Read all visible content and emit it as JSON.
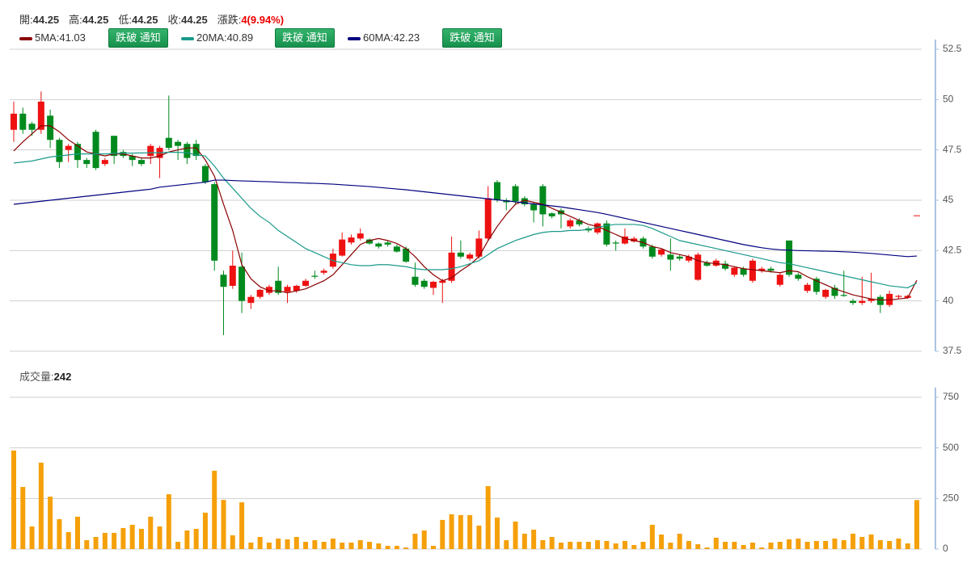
{
  "header": {
    "quote": [
      {
        "label": "開:",
        "value": 44.25
      },
      {
        "label": "高:",
        "value": 44.25
      },
      {
        "label": "低:",
        "value": 44.25
      },
      {
        "label": "收:",
        "value": 44.25
      },
      {
        "label": "漲跌:",
        "value": "4(9.94%)"
      }
    ],
    "button": "跌破 通知"
  },
  "chart_data": [
    {
      "type": "candlestick",
      "up_color": "#ee1111",
      "down_color": "#008a1e",
      "ylim": [
        37.5,
        52.5
      ],
      "yticks": [
        37.5,
        40,
        42.5,
        45,
        47.5,
        50,
        52.5
      ],
      "grid": true,
      "open": [
        48.5,
        49.3,
        48.8,
        48.5,
        49.2,
        48.0,
        47.5,
        47.8,
        47.0,
        48.4,
        46.8,
        48.2,
        47.4,
        47.2,
        47.0,
        47.2,
        47.1,
        48.1,
        47.9,
        47.8,
        47.8,
        46.7,
        45.8,
        41.3,
        40.75,
        41.7,
        39.9,
        40.2,
        40.4,
        41.0,
        40.45,
        40.5,
        40.75,
        41.25,
        41.4,
        41.7,
        42.25,
        42.9,
        43.1,
        43.05,
        42.85,
        42.9,
        42.7,
        42.6,
        41.2,
        41.0,
        40.65,
        40.9,
        41.0,
        42.4,
        42.1,
        42.2,
        43.1,
        45.9,
        45.0,
        45.7,
        45.1,
        44.8,
        45.7,
        44.35,
        44.5,
        43.7,
        44.0,
        43.6,
        43.4,
        43.85,
        42.9,
        42.85,
        42.95,
        43.1,
        42.7,
        42.3,
        42.3,
        42.2,
        42.0,
        41.05,
        41.9,
        41.75,
        41.85,
        41.3,
        41.6,
        41.0,
        41.5,
        41.6,
        40.8,
        43.0,
        41.3,
        40.5,
        41.1,
        40.2,
        40.65,
        40.3,
        40.0,
        39.9,
        40.0,
        40.2,
        39.8,
        40.2,
        40.15,
        44.25
      ],
      "high": [
        49.9,
        49.6,
        48.9,
        50.4,
        49.5,
        48.1,
        47.8,
        47.9,
        47.1,
        48.5,
        47.1,
        48.2,
        47.5,
        47.3,
        47.1,
        47.8,
        47.7,
        50.2,
        48.0,
        47.9,
        48.0,
        46.8,
        45.9,
        41.5,
        42.5,
        42.4,
        40.3,
        40.6,
        40.8,
        41.7,
        40.8,
        40.8,
        41.1,
        41.5,
        41.6,
        42.6,
        43.4,
        43.3,
        43.6,
        43.1,
        42.9,
        43.0,
        42.8,
        42.7,
        41.9,
        41.1,
        41.0,
        41.1,
        43.2,
        43.0,
        42.4,
        43.5,
        45.7,
        46.0,
        45.1,
        45.8,
        45.2,
        44.9,
        45.8,
        44.4,
        44.6,
        44.1,
        44.1,
        43.7,
        43.9,
        44.0,
        43.0,
        43.6,
        43.2,
        43.2,
        42.8,
        42.6,
        43.1,
        42.3,
        42.3,
        42.4,
        42.0,
        42.1,
        42.0,
        41.7,
        41.7,
        42.1,
        41.7,
        41.7,
        41.4,
        43.0,
        41.4,
        40.9,
        41.2,
        40.6,
        40.8,
        41.5,
        40.1,
        41.2,
        41.4,
        40.3,
        40.5,
        40.3,
        40.3,
        44.25
      ],
      "low": [
        47.9,
        48.3,
        48.2,
        48.3,
        47.6,
        46.6,
        46.9,
        46.6,
        46.6,
        46.5,
        46.7,
        46.8,
        47.1,
        46.7,
        46.7,
        46.8,
        46.1,
        47.5,
        47.0,
        46.8,
        47.0,
        45.8,
        41.5,
        38.3,
        40.6,
        39.4,
        39.6,
        40.1,
        40.3,
        40.3,
        39.9,
        40.4,
        40.7,
        41.1,
        41.3,
        41.6,
        42.2,
        42.8,
        43.0,
        42.8,
        42.6,
        42.7,
        42.4,
        41.9,
        40.7,
        40.6,
        40.3,
        39.9,
        40.9,
        42.1,
        42.0,
        42.1,
        43.0,
        44.9,
        44.5,
        44.8,
        44.7,
        43.9,
        43.7,
        44.1,
        43.6,
        43.6,
        43.7,
        43.4,
        43.3,
        42.7,
        42.5,
        42.8,
        42.9,
        42.6,
        42.1,
        42.2,
        41.5,
        42.0,
        41.9,
        41.0,
        41.7,
        41.7,
        41.5,
        41.2,
        41.2,
        40.9,
        41.4,
        41.4,
        40.7,
        41.2,
        41.0,
        40.4,
        40.3,
        40.1,
        40.1,
        40.2,
        39.8,
        39.8,
        39.9,
        39.4,
        39.7,
        40.1,
        40.1,
        44.25
      ],
      "close": [
        49.3,
        48.5,
        48.5,
        49.9,
        48.0,
        46.9,
        47.7,
        47.0,
        46.8,
        46.6,
        47.0,
        47.2,
        47.2,
        47.0,
        46.8,
        47.7,
        47.6,
        47.6,
        47.7,
        47.1,
        47.2,
        45.9,
        42.0,
        40.7,
        41.75,
        40.0,
        40.2,
        40.55,
        40.7,
        40.4,
        40.7,
        40.75,
        41.0,
        41.2,
        41.5,
        42.35,
        43.05,
        43.15,
        43.35,
        42.85,
        42.7,
        42.8,
        42.45,
        41.95,
        40.8,
        40.7,
        40.95,
        41.0,
        42.4,
        42.2,
        42.3,
        43.1,
        45.1,
        45.0,
        44.9,
        44.95,
        44.8,
        44.5,
        44.3,
        44.2,
        44.3,
        44.0,
        43.8,
        43.5,
        43.85,
        42.8,
        42.85,
        43.2,
        43.1,
        42.7,
        42.2,
        42.55,
        42.05,
        42.1,
        42.2,
        42.3,
        41.75,
        42.0,
        41.6,
        41.65,
        41.3,
        42.0,
        41.6,
        41.5,
        41.3,
        41.3,
        41.1,
        40.8,
        40.45,
        40.55,
        40.25,
        40.25,
        39.9,
        40.0,
        40.1,
        39.8,
        40.35,
        40.25,
        40.25,
        44.25
      ],
      "series": [
        {
          "legend": "5MA:41.03",
          "color": "#8b0000",
          "values": [
            47.45,
            47.9,
            48.3,
            48.7,
            48.7,
            48.4,
            48.0,
            47.7,
            47.4,
            47.3,
            47.2,
            47.3,
            47.3,
            47.2,
            47.1,
            47.1,
            47.2,
            47.4,
            47.5,
            47.6,
            47.6,
            47.0,
            46.2,
            44.8,
            43.5,
            41.8,
            41.1,
            40.7,
            40.5,
            40.5,
            40.4,
            40.5,
            40.6,
            40.8,
            41.0,
            41.3,
            41.8,
            42.3,
            42.8,
            43.0,
            43.1,
            43.0,
            42.85,
            42.6,
            42.2,
            41.7,
            41.3,
            41.0,
            41.15,
            41.5,
            41.8,
            42.2,
            43.0,
            43.7,
            44.3,
            44.8,
            45.0,
            44.9,
            44.8,
            44.6,
            44.4,
            44.2,
            44.0,
            43.8,
            43.7,
            43.5,
            43.3,
            43.1,
            43.0,
            42.9,
            42.7,
            42.6,
            42.4,
            42.3,
            42.2,
            42.0,
            41.9,
            41.85,
            41.8,
            41.7,
            41.6,
            41.55,
            41.5,
            41.45,
            41.4,
            41.5,
            41.45,
            41.2,
            41.0,
            40.8,
            40.6,
            40.45,
            40.3,
            40.2,
            40.1,
            40.05,
            40.05,
            40.1,
            40.15,
            41.03
          ]
        },
        {
          "legend": "20MA:40.89",
          "color": "#1a9a8a",
          "values": [
            46.85,
            46.9,
            46.95,
            47.05,
            47.15,
            47.2,
            47.25,
            47.3,
            47.3,
            47.3,
            47.3,
            47.32,
            47.34,
            47.34,
            47.35,
            47.36,
            47.36,
            47.38,
            47.38,
            47.36,
            47.25,
            47.2,
            46.7,
            46.1,
            45.6,
            45.1,
            44.6,
            44.2,
            43.9,
            43.5,
            43.2,
            42.9,
            42.6,
            42.4,
            42.2,
            42.0,
            41.9,
            41.8,
            41.75,
            41.75,
            41.8,
            41.8,
            41.75,
            41.7,
            41.6,
            41.55,
            41.55,
            41.55,
            41.6,
            41.7,
            41.85,
            42.0,
            42.3,
            42.6,
            42.8,
            43.0,
            43.15,
            43.3,
            43.4,
            43.45,
            43.45,
            43.5,
            43.5,
            43.55,
            43.65,
            43.75,
            43.8,
            43.8,
            43.8,
            43.75,
            43.6,
            43.4,
            43.2,
            43.0,
            42.9,
            42.8,
            42.7,
            42.6,
            42.5,
            42.4,
            42.3,
            42.2,
            42.1,
            42.0,
            41.9,
            41.85,
            41.75,
            41.65,
            41.55,
            41.45,
            41.35,
            41.25,
            41.15,
            41.05,
            40.95,
            40.85,
            40.75,
            40.7,
            40.65,
            40.89
          ]
        },
        {
          "legend": "60MA:42.23",
          "color": "#000080",
          "values": [
            44.8,
            44.85,
            44.9,
            44.95,
            45.0,
            45.05,
            45.1,
            45.15,
            45.2,
            45.25,
            45.3,
            45.35,
            45.4,
            45.45,
            45.5,
            45.55,
            45.65,
            45.7,
            45.75,
            45.8,
            45.85,
            45.9,
            46.0,
            46.0,
            45.98,
            45.96,
            45.95,
            45.93,
            45.92,
            45.9,
            45.88,
            45.87,
            45.85,
            45.84,
            45.82,
            45.8,
            45.77,
            45.74,
            45.71,
            45.68,
            45.64,
            45.6,
            45.56,
            45.52,
            45.47,
            45.42,
            45.37,
            45.32,
            45.27,
            45.22,
            45.17,
            45.12,
            45.07,
            45.02,
            44.97,
            44.92,
            44.87,
            44.82,
            44.77,
            44.72,
            44.67,
            44.6,
            44.53,
            44.46,
            44.39,
            44.3,
            44.2,
            44.1,
            44.0,
            43.9,
            43.8,
            43.7,
            43.6,
            43.5,
            43.4,
            43.3,
            43.2,
            43.1,
            43.0,
            42.9,
            42.8,
            42.72,
            42.64,
            42.58,
            42.54,
            42.52,
            42.5,
            42.49,
            42.48,
            42.47,
            42.46,
            42.44,
            42.42,
            42.39,
            42.36,
            42.32,
            42.28,
            42.24,
            42.2,
            42.23
          ]
        }
      ]
    },
    {
      "type": "bar",
      "title": "成交量:",
      "last": 242,
      "color": "#f5a00a",
      "ylim": [
        0,
        750
      ],
      "yticks": [
        0,
        250,
        500,
        750
      ],
      "grid": true,
      "values": [
        487,
        307,
        112,
        427,
        259,
        148,
        84,
        160,
        44,
        60,
        80,
        80,
        104,
        120,
        100,
        160,
        112,
        271,
        36,
        92,
        100,
        180,
        387,
        243,
        68,
        231,
        32,
        60,
        32,
        52,
        48,
        60,
        36,
        44,
        36,
        52,
        32,
        32,
        44,
        36,
        28,
        16,
        16,
        8,
        76,
        92,
        16,
        144,
        172,
        168,
        168,
        116,
        311,
        156,
        44,
        136,
        76,
        96,
        44,
        60,
        32,
        36,
        36,
        36,
        44,
        40,
        28,
        40,
        20,
        36,
        120,
        72,
        32,
        76,
        40,
        24,
        8,
        56,
        36,
        36,
        20,
        32,
        8,
        32,
        36,
        48,
        52,
        36,
        40,
        40,
        52,
        44,
        76,
        60,
        72,
        44,
        40,
        52,
        28,
        242
      ]
    }
  ]
}
